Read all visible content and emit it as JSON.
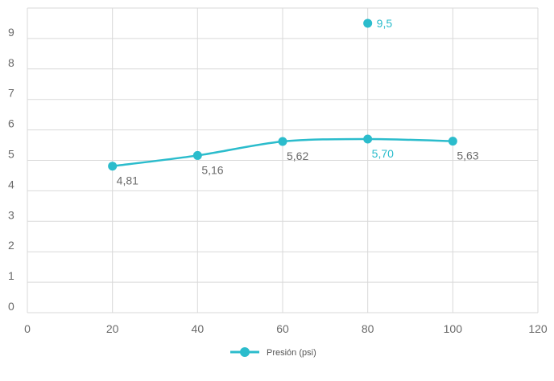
{
  "chart_data": {
    "type": "scatter",
    "title": "",
    "xlabel": "",
    "ylabel": "",
    "xlim": [
      0,
      120
    ],
    "ylim": [
      0,
      10
    ],
    "x_ticks": [
      "0",
      "20",
      "40",
      "60",
      "80",
      "100",
      "120"
    ],
    "y_ticks": [
      "0",
      "1",
      "2",
      "3",
      "4",
      "5",
      "6",
      "7",
      "8",
      "9"
    ],
    "grid": true,
    "legend_position": "bottom",
    "series": [
      {
        "name": "Presión (psi)",
        "color": "#2bbccc",
        "line": true,
        "smooth": true,
        "points": [
          {
            "x": 20,
            "y": 4.81,
            "label": "4,81"
          },
          {
            "x": 40,
            "y": 5.16,
            "label": "5,16"
          },
          {
            "x": 60,
            "y": 5.62,
            "label": "5,62"
          },
          {
            "x": 80,
            "y": 5.7,
            "label": "5,70",
            "highlight": true
          },
          {
            "x": 100,
            "y": 5.63,
            "label": "5,63"
          }
        ]
      }
    ],
    "outlier": {
      "x": 80,
      "y": 9.5,
      "label": "9,5",
      "color": "#2bbccc"
    }
  }
}
